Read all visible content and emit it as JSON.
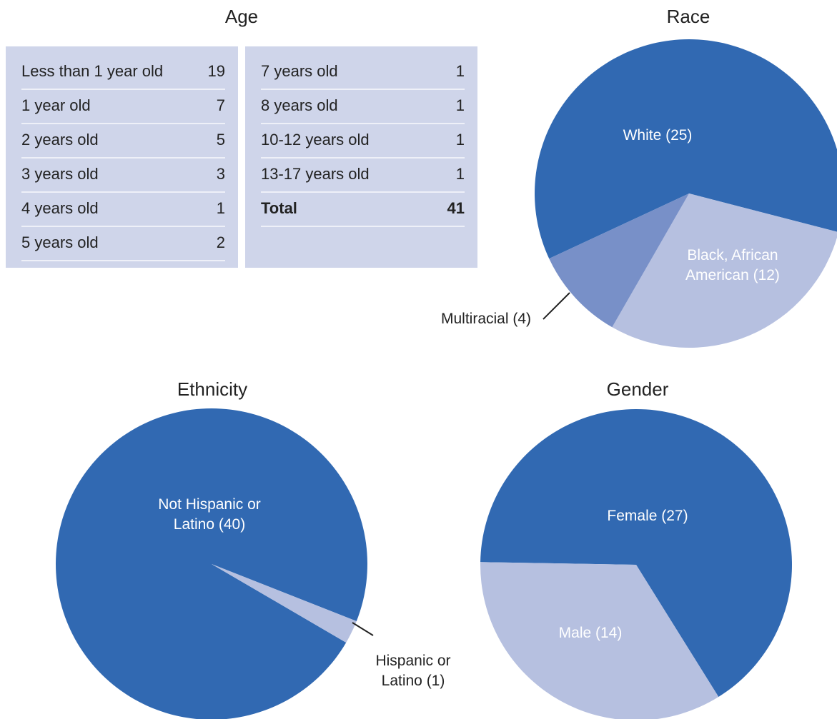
{
  "age": {
    "title": "Age",
    "tables": [
      {
        "rows": [
          {
            "label": "Less than 1 year old",
            "value": 19
          },
          {
            "label": "1 year old",
            "value": 7
          },
          {
            "label": "2 years old",
            "value": 5
          },
          {
            "label": "3 years old",
            "value": 3
          },
          {
            "label": "4 years old",
            "value": 1
          },
          {
            "label": "5 years old",
            "value": 2
          }
        ]
      },
      {
        "rows": [
          {
            "label": "7 years old",
            "value": 1
          },
          {
            "label": "8 years old",
            "value": 1
          },
          {
            "label": "10-12 years old",
            "value": 1
          },
          {
            "label": "13-17 years old",
            "value": 1
          }
        ],
        "total": {
          "label": "Total",
          "value": 41
        }
      }
    ]
  },
  "chart_data": [
    {
      "type": "pie",
      "title": "Race",
      "categories": [
        "White",
        "Black, African American",
        "Multiracial"
      ],
      "values": [
        25,
        12,
        4
      ],
      "value_labels": [
        "White (25)",
        "Black, African American (12)",
        "Multiracial (4)"
      ],
      "colors": [
        "#3169b2",
        "#b6c0e0",
        "#7890c8"
      ]
    },
    {
      "type": "pie",
      "title": "Ethnicity",
      "categories": [
        "Not Hispanic or Latino",
        "Hispanic or Latino"
      ],
      "values": [
        40,
        1
      ],
      "value_labels": [
        "Not Hispanic or Latino (40)",
        "Hispanic or Latino (1)"
      ],
      "colors": [
        "#3169b2",
        "#b6c0e0"
      ]
    },
    {
      "type": "pie",
      "title": "Gender",
      "categories": [
        "Female",
        "Male"
      ],
      "values": [
        27,
        14
      ],
      "value_labels": [
        "Female (27)",
        "Male (14)"
      ],
      "colors": [
        "#3169b2",
        "#b6c0e0"
      ]
    }
  ]
}
